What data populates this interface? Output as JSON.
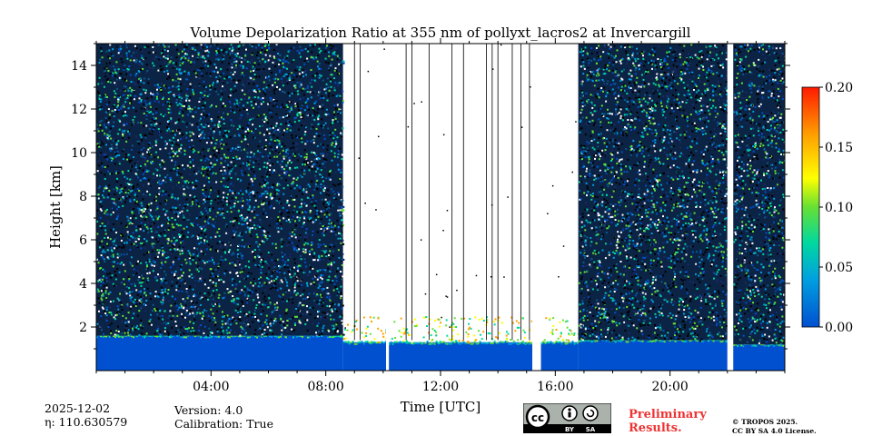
{
  "chart_data": {
    "type": "heatmap",
    "title": "Volume Depolarization Ratio at 355 nm of pollyxt_lacros2 at Invercargill",
    "xlabel": "Time [UTC]",
    "ylabel": "Height [km]",
    "xlim_hours": [
      0,
      24
    ],
    "ylim_km": [
      0,
      15
    ],
    "x_ticks": [
      {
        "hour": 4,
        "label": "04:00"
      },
      {
        "hour": 8,
        "label": "08:00"
      },
      {
        "hour": 12,
        "label": "12:00"
      },
      {
        "hour": 16,
        "label": "16:00"
      },
      {
        "hour": 20,
        "label": "20:00"
      }
    ],
    "y_ticks": [
      {
        "km": 2,
        "label": "2"
      },
      {
        "km": 4,
        "label": "4"
      },
      {
        "km": 6,
        "label": "6"
      },
      {
        "km": 8,
        "label": "8"
      },
      {
        "km": 10,
        "label": "10"
      },
      {
        "km": 12,
        "label": "12"
      },
      {
        "km": 14,
        "label": "14"
      }
    ],
    "colorbar": {
      "range": [
        0.0,
        0.2
      ],
      "ticks": [
        {
          "value": 0.0,
          "label": "0.00"
        },
        {
          "value": 0.05,
          "label": "0.05"
        },
        {
          "value": 0.1,
          "label": "0.10"
        },
        {
          "value": 0.15,
          "label": "0.15"
        },
        {
          "value": 0.2,
          "label": "0.20"
        }
      ],
      "colors": [
        "#0050d0",
        "#00a0e0",
        "#00d8a0",
        "#66e033",
        "#ffff00",
        "#ffa000",
        "#ff1a00"
      ]
    },
    "segments": [
      {
        "start": 0.0,
        "end": 8.6,
        "kind": "noisy",
        "boundary_layer_km": 1.6
      },
      {
        "start": 8.6,
        "end": 15.2,
        "kind": "clear",
        "boundary_layer_km": 1.3
      },
      {
        "start": 15.5,
        "end": 16.8,
        "kind": "clear",
        "boundary_layer_km": 1.3
      },
      {
        "start": 16.8,
        "end": 22.0,
        "kind": "noisy",
        "boundary_layer_km": 1.4
      },
      {
        "start": 22.2,
        "end": 24.0,
        "kind": "noisy",
        "boundary_layer_km": 1.2
      }
    ],
    "gaps_hours": [
      [
        10.1,
        10.2
      ],
      [
        15.2,
        15.3
      ],
      [
        22.0,
        22.2
      ]
    ],
    "profile_lines_hours": [
      9.0,
      9.2,
      10.8,
      11.0,
      11.6,
      12.4,
      12.8,
      13.6,
      13.8,
      14.0,
      14.5,
      14.8,
      15.1
    ]
  },
  "footer": {
    "date": "2025-12-02",
    "eta": "η: 110.630579",
    "version": "Version: 4.0",
    "calibration": "Calibration: True",
    "preliminary_line1": "Preliminary",
    "preliminary_line2": "Results.",
    "license_line1": "© TROPOS 2025.",
    "license_line2": "CC BY SA 4.0 License.",
    "badge_by": "BY",
    "badge_sa": "SA"
  }
}
